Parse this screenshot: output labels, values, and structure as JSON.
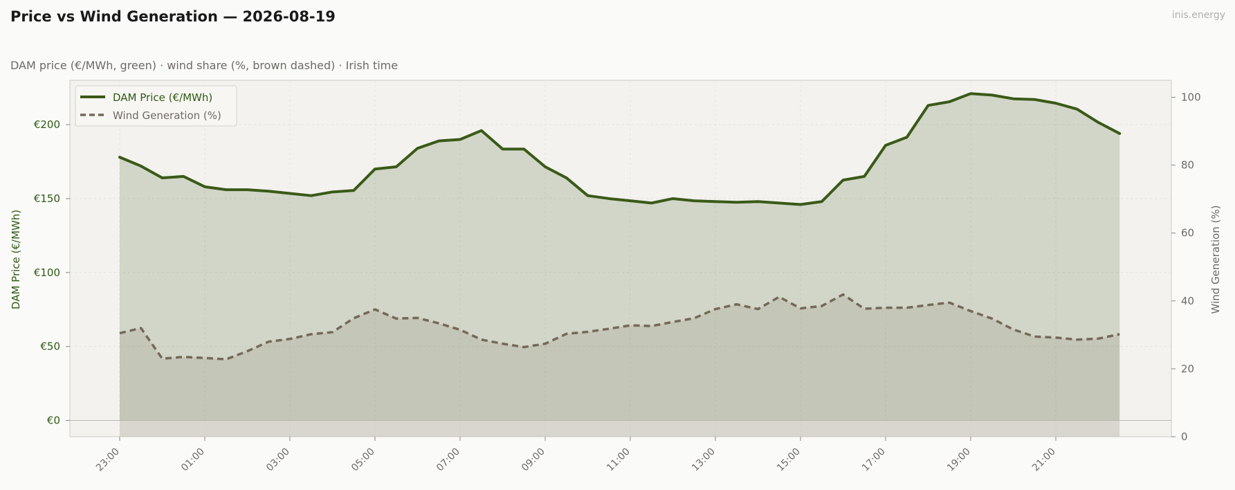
{
  "header": {
    "title": "Price vs Wind Generation — 2026-08-19",
    "subtitle": "DAM price (€/MWh, green)  ·  wind share (%, brown dashed)  ·  Irish time",
    "brand": "inis.energy"
  },
  "colors": {
    "price": "#3a5a17",
    "wind": "#766858",
    "plot_bg": "#f3f2ef",
    "page_bg": "#fafaf8"
  },
  "chart_data": {
    "type": "line",
    "x": [
      "23:00",
      "23:30",
      "00:00",
      "00:30",
      "01:00",
      "01:30",
      "02:00",
      "02:30",
      "03:00",
      "03:30",
      "04:00",
      "04:30",
      "05:00",
      "05:30",
      "06:00",
      "06:30",
      "07:00",
      "07:30",
      "08:00",
      "08:30",
      "09:00",
      "09:30",
      "10:00",
      "10:30",
      "11:00",
      "11:30",
      "12:00",
      "12:30",
      "13:00",
      "13:30",
      "14:00",
      "14:30",
      "15:00",
      "15:30",
      "16:00",
      "16:30",
      "17:00",
      "17:30",
      "18:00",
      "18:30",
      "19:00",
      "19:30",
      "20:00",
      "20:30",
      "21:00",
      "21:30",
      "22:00",
      "22:30"
    ],
    "x_tick_labels": [
      "23:00",
      "01:00",
      "03:00",
      "05:00",
      "07:00",
      "09:00",
      "11:00",
      "13:00",
      "15:00",
      "17:00",
      "19:00",
      "21:00"
    ],
    "series": [
      {
        "name": "DAM Price (€/MWh)",
        "axis": "left",
        "style": "solid",
        "values": [
          178,
          172,
          164,
          165,
          158,
          156,
          156,
          155,
          153.5,
          152,
          154.5,
          155.5,
          170,
          171.5,
          184,
          189,
          190,
          196,
          183.5,
          183.5,
          171.5,
          164,
          152,
          150,
          148.5,
          147,
          150,
          148.5,
          148,
          147.5,
          148,
          147,
          146,
          148,
          162.5,
          165,
          186,
          191.5,
          213,
          215.5,
          221,
          220,
          217.5,
          217,
          214.5,
          210.5,
          201.5,
          194
        ]
      },
      {
        "name": "Wind Generation (%)",
        "axis": "right",
        "style": "dashed",
        "values": [
          30.5,
          32,
          23,
          23.5,
          23.2,
          22.8,
          25.2,
          28,
          28.8,
          30.2,
          30.8,
          34.9,
          37.5,
          34.8,
          35,
          33.4,
          31.5,
          28.6,
          27.4,
          26.4,
          27.4,
          30.3,
          30.9,
          31.8,
          32.8,
          32.6,
          33.8,
          34.9,
          37.6,
          39,
          37.6,
          41.2,
          37.8,
          38.5,
          41.9,
          37.7,
          38,
          38,
          38.8,
          39.5,
          37,
          34.8,
          31.6,
          29.5,
          29.2,
          28.6,
          28.9,
          30.2
        ]
      }
    ],
    "ylabel": "DAM Price (€/MWh)",
    "ylabel_right": "Wind Generation (%)",
    "ylim": [
      -11,
      230
    ],
    "ylim_right": [
      0,
      105
    ],
    "yticks": [
      0,
      50,
      100,
      150,
      200
    ],
    "ytick_labels": [
      "€0",
      "€50",
      "€100",
      "€150",
      "€200"
    ],
    "yticks_right": [
      0,
      20,
      40,
      60,
      80,
      100
    ],
    "grid": true,
    "legend": "top-left"
  }
}
